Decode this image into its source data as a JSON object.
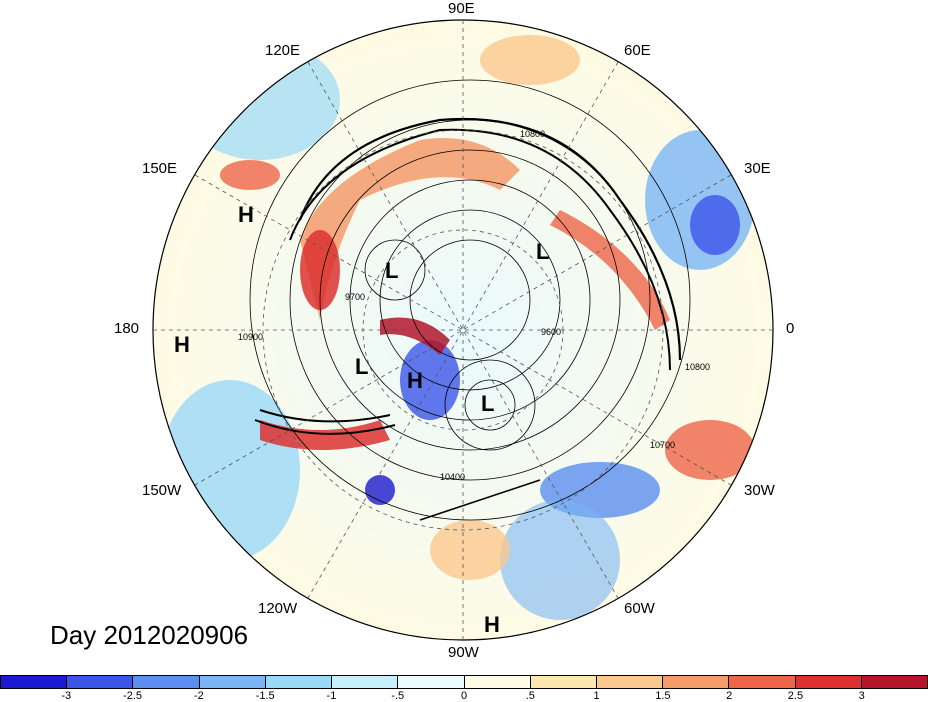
{
  "title": "Day 2012020906",
  "longitude_labels": [
    "90E",
    "60E",
    "30E",
    "0",
    "30W",
    "60W",
    "90W",
    "120W",
    "150W",
    "180",
    "150E",
    "120E"
  ],
  "pressure_centers": [
    "H",
    "L",
    "L",
    "L",
    "H",
    "L",
    "H",
    "H"
  ],
  "contour_labels": [
    "10800",
    "9700",
    "10900",
    "10800",
    "10700",
    "10400",
    "9600"
  ],
  "colorbar": {
    "colors": [
      "#1b1ad0",
      "#3b55e8",
      "#5b8ef0",
      "#7ab6f5",
      "#9ad8f8",
      "#c8f0fb",
      "#eafafd",
      "#fffbe4",
      "#fde7b0",
      "#fbc88d",
      "#f59a6a",
      "#ee6549",
      "#dc3130",
      "#b5142b"
    ],
    "labels": [
      "-3",
      "-2.5",
      "-2",
      "-1.5",
      "-1",
      "-.5",
      "0",
      ".5",
      "1",
      "1.5",
      "2",
      "2.5",
      "3"
    ]
  }
}
